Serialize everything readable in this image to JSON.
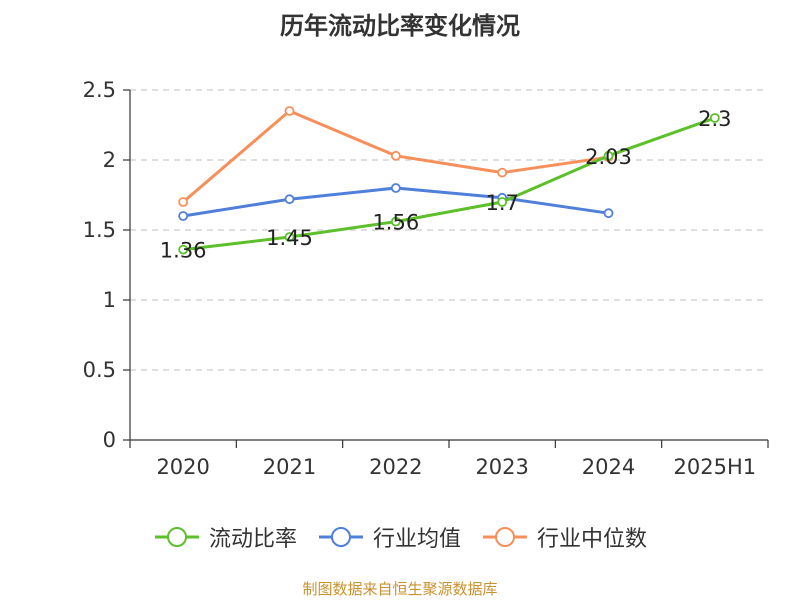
{
  "chart_data": {
    "type": "line",
    "title": "历年流动比率变化情况",
    "categories": [
      "2020",
      "2021",
      "2022",
      "2023",
      "2024",
      "2025H1"
    ],
    "ylim": [
      0,
      2.5
    ],
    "yticks": [
      0,
      0.5,
      1,
      1.5,
      2,
      2.5
    ],
    "ytick_labels": [
      "0",
      "0.5",
      "1",
      "1.5",
      "2",
      "2.5"
    ],
    "grid": true,
    "legend_position": "bottom",
    "series": [
      {
        "name": "流动比率",
        "color": "#5cc02a",
        "values": [
          1.36,
          1.45,
          1.56,
          1.7,
          2.03,
          2.3
        ],
        "labels": [
          "1.36",
          "1.45",
          "1.56",
          "1.7",
          "2.03",
          "2.3"
        ]
      },
      {
        "name": "行业均值",
        "color": "#4f7fd9",
        "values": [
          1.6,
          1.72,
          1.8,
          1.73,
          1.62,
          null
        ]
      },
      {
        "name": "行业中位数",
        "color": "#f78f5a",
        "values": [
          1.7,
          2.35,
          2.03,
          1.91,
          2.02,
          null
        ]
      }
    ]
  },
  "footer": {
    "source": "制图数据来自恒生聚源数据库"
  }
}
